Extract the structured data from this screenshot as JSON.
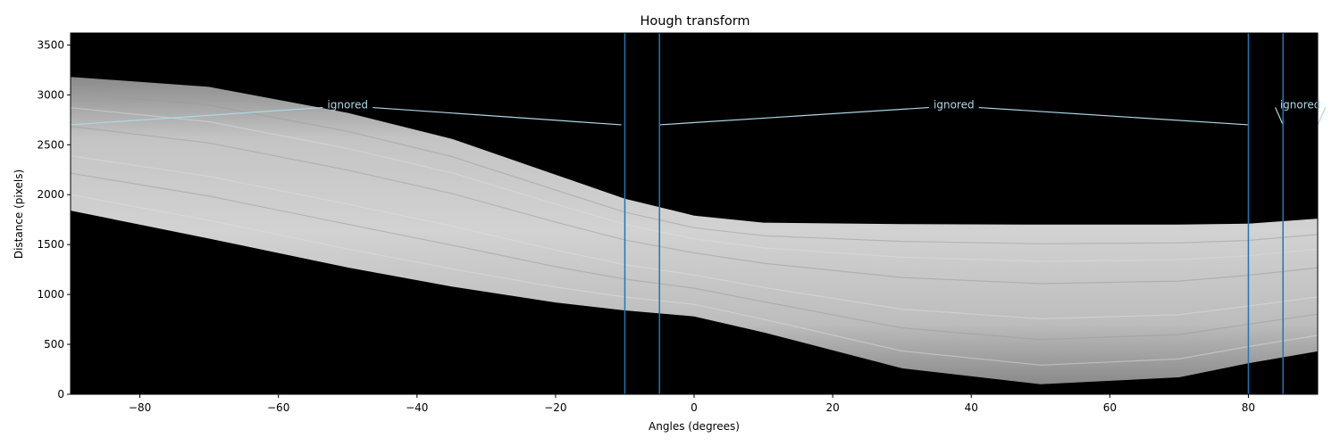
{
  "chart_data": {
    "type": "heatmap",
    "title": "Hough transform",
    "xlabel": "Angles (degrees)",
    "ylabel": "Distance (pixels)",
    "xlim": [
      -90,
      90
    ],
    "ylim": [
      0,
      3620
    ],
    "xticks": [
      -80,
      -60,
      -40,
      -20,
      0,
      20,
      40,
      60,
      80
    ],
    "yticks": [
      0,
      500,
      1000,
      1500,
      2000,
      2500,
      3000,
      3500
    ],
    "grid": false,
    "colormap": "gray",
    "background_color": "#000000",
    "band": {
      "description_points": [
        {
          "angle": -90,
          "upper": 3180,
          "lower": 1840
        },
        {
          "angle": -70,
          "upper": 3080,
          "lower": 1560
        },
        {
          "angle": -50,
          "upper": 2820,
          "lower": 1270
        },
        {
          "angle": -35,
          "upper": 2560,
          "lower": 1080
        },
        {
          "angle": -20,
          "upper": 2200,
          "lower": 920
        },
        {
          "angle": -10,
          "upper": 1960,
          "lower": 840
        },
        {
          "angle": 0,
          "upper": 1790,
          "lower": 780
        },
        {
          "angle": 10,
          "upper": 1720,
          "lower": 620
        },
        {
          "angle": 30,
          "upper": 1705,
          "lower": 260
        },
        {
          "angle": 50,
          "upper": 1700,
          "lower": 100
        },
        {
          "angle": 70,
          "upper": 1700,
          "lower": 170
        },
        {
          "angle": 80,
          "upper": 1710,
          "lower": 310
        },
        {
          "angle": 90,
          "upper": 1760,
          "lower": 430
        }
      ]
    },
    "vlines": [
      {
        "x": -10,
        "color": "#1f77b4"
      },
      {
        "x": -5,
        "color": "#1f77b4"
      },
      {
        "x": 80,
        "color": "#1f77b4"
      },
      {
        "x": 85,
        "color": "#1f77b4"
      }
    ],
    "annotations": [
      {
        "text": "ignored",
        "x": -50,
        "y": 2900,
        "pointers": [
          {
            "x": -90,
            "y": 2700
          },
          {
            "x": -10.5,
            "y": 2700
          }
        ]
      },
      {
        "text": "ignored",
        "x": 37.5,
        "y": 2900,
        "pointers": [
          {
            "x": -5,
            "y": 2700
          },
          {
            "x": 80,
            "y": 2700
          }
        ]
      },
      {
        "text": "ignored",
        "x": 87.5,
        "y": 2900,
        "pointers": [
          {
            "x": 85,
            "y": 2700
          },
          {
            "x": 90,
            "y": 2700
          }
        ]
      }
    ],
    "annotation_color": "#add8e6"
  }
}
